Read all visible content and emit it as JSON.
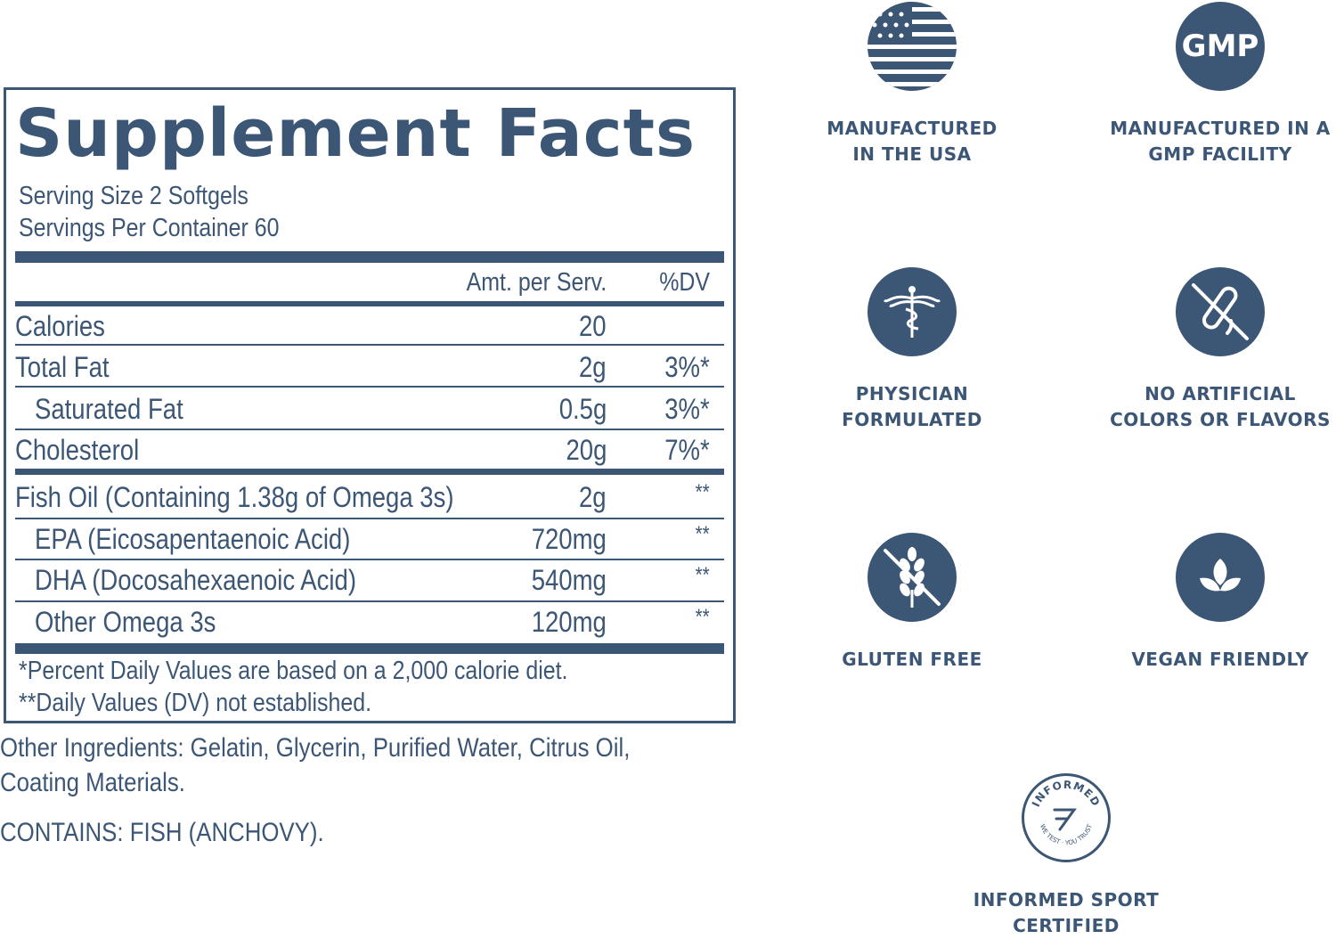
{
  "facts": {
    "title": "Supplement Facts",
    "serving_size": "Serving Size 2 Softgels",
    "servings_per_container": "Servings Per Container 60",
    "header_amt": "Amt. per Serv.",
    "header_dv": "%DV",
    "rows": [
      {
        "name": "Calories",
        "amount": "20",
        "dv": ""
      },
      {
        "name": "Total Fat",
        "amount": "2g",
        "dv": "3%*"
      },
      {
        "name": "Saturated Fat",
        "amount": "0.5g",
        "dv": "3%*"
      },
      {
        "name": "Cholesterol",
        "amount": "20g",
        "dv": "7%*"
      },
      {
        "name": "Fish Oil (Containing 1.38g of Omega 3s)",
        "amount": "2g",
        "dv": "**"
      },
      {
        "name": "EPA (Eicosapentaenoic Acid)",
        "amount": "720mg",
        "dv": "**"
      },
      {
        "name": "DHA (Docosahexaenoic Acid)",
        "amount": "540mg",
        "dv": "**"
      },
      {
        "name": "Other Omega 3s",
        "amount": "120mg",
        "dv": "**"
      }
    ],
    "footnote_1": "*Percent Daily Values are based on a 2,000 calorie diet.",
    "footnote_2": "**Daily Values (DV) not established."
  },
  "other_ingredients_line1": "Other Ingredients: Gelatin, Glycerin, Purified Water, Citrus Oil,",
  "other_ingredients_line2": "Coating Materials.",
  "contains": "CONTAINS: FISH (ANCHOVY).",
  "badges": {
    "usa": {
      "line1": "MANUFACTURED",
      "line2": "IN THE USA",
      "icon": "usa-flag-icon"
    },
    "gmp": {
      "line1": "MANUFACTURED IN A",
      "line2": "GMP FACILITY",
      "icon_text": "GMP"
    },
    "physician": {
      "line1": "PHYSICIAN",
      "line2": "FORMULATED",
      "icon": "caduceus-icon"
    },
    "no_artificial": {
      "line1": "NO ARTIFICIAL",
      "line2": "COLORS OR FLAVORS",
      "icon": "no-test-tube-icon"
    },
    "gluten": {
      "line1": "GLUTEN FREE",
      "icon": "no-wheat-icon"
    },
    "vegan": {
      "line1": "VEGAN FRIENDLY",
      "icon": "leaf-icon"
    },
    "informed": {
      "line1": "INFORMED SPORT",
      "line2": "CERTIFIED",
      "seal_top": "INFORMED",
      "seal_bottom": "WE TEST · YOU TRUST"
    }
  },
  "colors": {
    "brand": "#3c5675",
    "background": "#ffffff"
  }
}
